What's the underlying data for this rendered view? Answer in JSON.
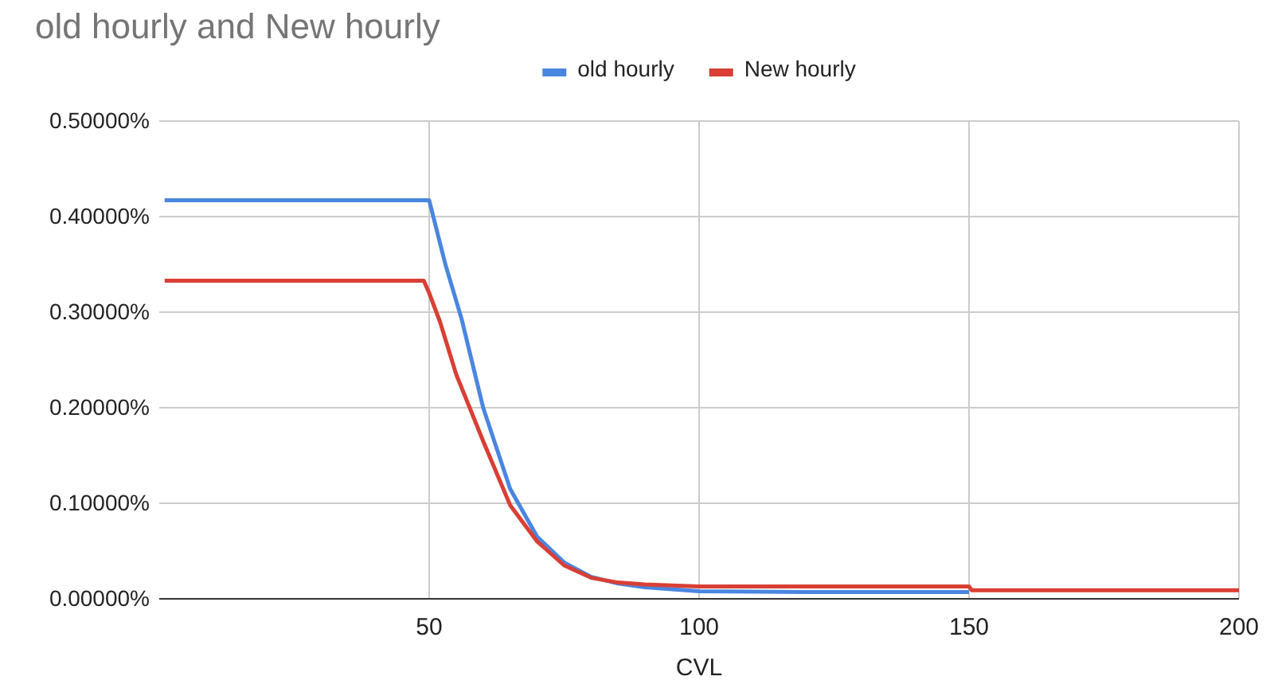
{
  "chart_data": {
    "type": "line",
    "title": "old hourly and New hourly",
    "xlabel": "CVL",
    "series": [
      {
        "name": "old hourly",
        "color": "#4a86e0",
        "x": [
          1,
          50,
          53,
          56,
          60,
          65,
          70,
          75,
          80,
          85,
          90,
          100,
          120,
          150
        ],
        "values": [
          0.417,
          0.417,
          0.35,
          0.293,
          0.2,
          0.115,
          0.065,
          0.038,
          0.023,
          0.016,
          0.012,
          0.008,
          0.007,
          0.007
        ]
      },
      {
        "name": "New hourly",
        "color": "#d93f34",
        "x": [
          1,
          49,
          50,
          52,
          55,
          60,
          65,
          70,
          75,
          80,
          85,
          90,
          100,
          120,
          150,
          150.5,
          200
        ],
        "values": [
          0.333,
          0.333,
          0.32,
          0.29,
          0.235,
          0.165,
          0.098,
          0.06,
          0.035,
          0.022,
          0.017,
          0.015,
          0.013,
          0.013,
          0.013,
          0.009,
          0.009
        ]
      }
    ],
    "xlim": [
      0,
      200
    ],
    "xticks": [
      50,
      100,
      150,
      200
    ],
    "ylim": [
      0,
      0.5
    ],
    "yticks": [
      {
        "value": 0,
        "label": "0.00000%"
      },
      {
        "value": 0.1,
        "label": "0.10000%"
      },
      {
        "value": 0.2,
        "label": "0.20000%"
      },
      {
        "value": 0.3,
        "label": "0.30000%"
      },
      {
        "value": 0.4,
        "label": "0.40000%"
      },
      {
        "value": 0.5,
        "label": "0.50000%"
      }
    ],
    "grid": true,
    "legend": "top",
    "marker": "none",
    "line_style": "solid"
  }
}
